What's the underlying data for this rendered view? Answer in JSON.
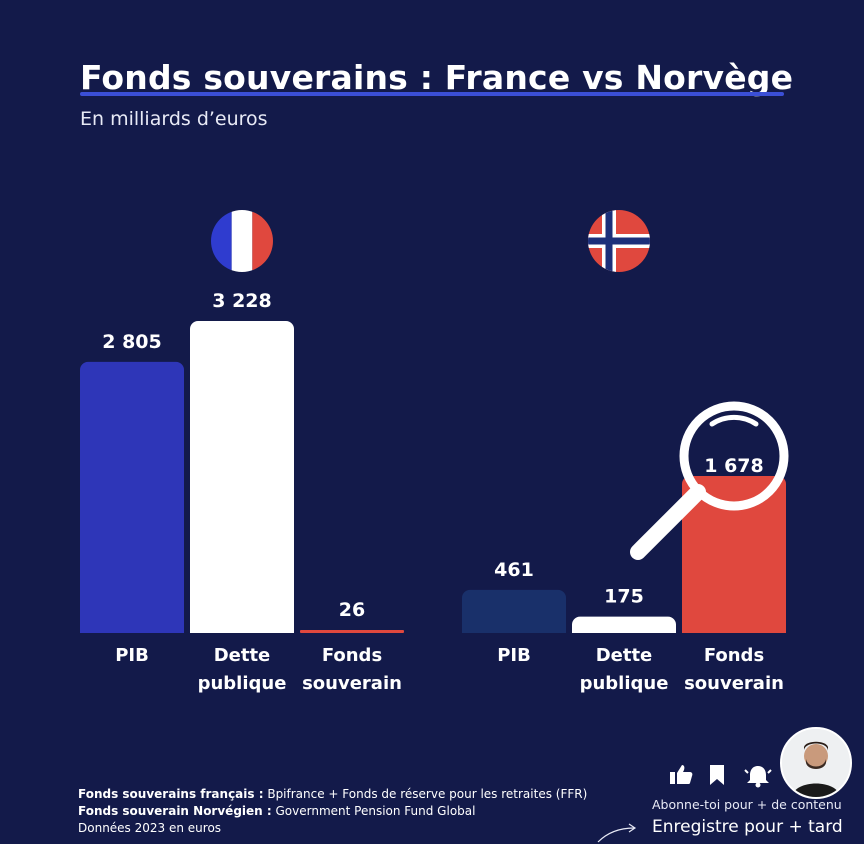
{
  "title": "Fonds souverains : France vs Norvège",
  "subtitle": "En milliards d’euros",
  "colors": {
    "background": "#131a4a",
    "title_underline": "#3b4fd6",
    "france_blue": "#2e36b8",
    "white": "#ffffff",
    "red": "#e0483e",
    "norway_navy": "#19306a"
  },
  "chart_data": [
    {
      "type": "bar",
      "group": "France",
      "flag_icon": "france-flag-icon",
      "categories": [
        "PIB",
        "Dette publique",
        "Fonds souverain"
      ],
      "category_lines": [
        [
          "PIB"
        ],
        [
          "Dette",
          "publique"
        ],
        [
          "Fonds",
          "souverain"
        ]
      ],
      "values": [
        2805,
        3228,
        26
      ],
      "value_labels": [
        "2 805",
        "3 228",
        "26"
      ],
      "bar_colors": [
        "#2e36b8",
        "#ffffff",
        "#e0483e"
      ],
      "ylim": [
        0,
        3228
      ]
    },
    {
      "type": "bar",
      "group": "Norvège",
      "flag_icon": "norway-flag-icon",
      "categories": [
        "PIB",
        "Dette publique",
        "Fonds souverain"
      ],
      "category_lines": [
        [
          "PIB"
        ],
        [
          "Dette",
          "publique"
        ],
        [
          "Fonds",
          "souverain"
        ]
      ],
      "values": [
        461,
        175,
        1678
      ],
      "value_labels": [
        "461",
        "175",
        "1 678"
      ],
      "bar_colors": [
        "#19306a",
        "#ffffff",
        "#e0483e"
      ],
      "ylim": [
        0,
        1678
      ],
      "highlight_icon": "magnifying-glass-icon"
    }
  ],
  "footer": {
    "line1_bold": "Fonds souverains français :",
    "line1_text": " Bpifrance + Fonds de réserve pour les retraites (FFR)",
    "line2_bold": "Fonds souverain Norvégien :",
    "line2_text": "  Government Pension Fund Global",
    "line3": "Données 2023 en euros"
  },
  "social": {
    "icons": [
      "thumbs-up-icon",
      "bookmark-icon",
      "bell-icon"
    ],
    "subscribe_text": "Abonne-toi pour + de contenu",
    "save_text": "Enregistre pour + tard"
  }
}
